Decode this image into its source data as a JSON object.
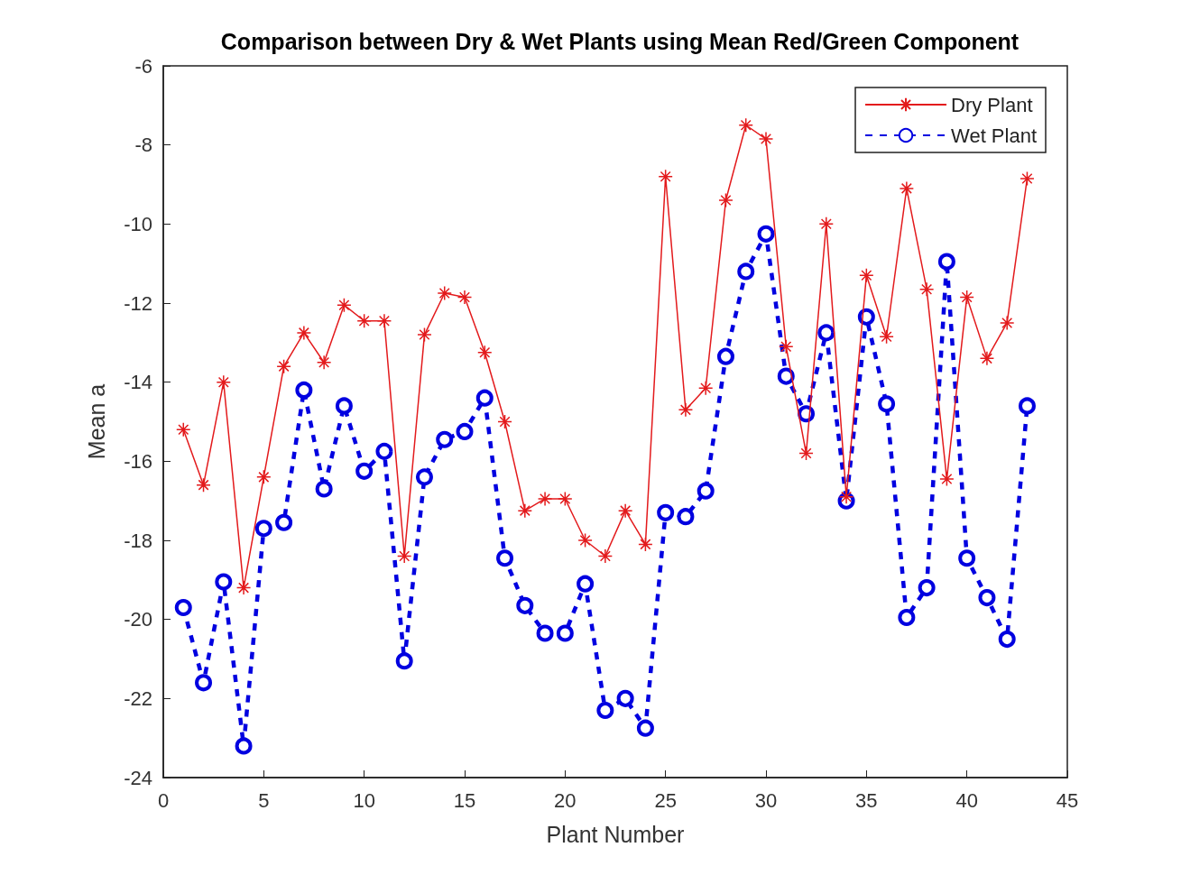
{
  "chart_data": {
    "type": "line",
    "title": "Comparison between Dry & Wet Plants using Mean Red/Green Component",
    "xlabel": "Plant Number",
    "ylabel": "Mean a",
    "x": [
      1,
      2,
      3,
      4,
      5,
      6,
      7,
      8,
      9,
      10,
      11,
      12,
      13,
      14,
      15,
      16,
      17,
      18,
      19,
      20,
      21,
      22,
      23,
      24,
      25,
      26,
      27,
      28,
      29,
      30,
      31,
      32,
      33,
      34,
      35,
      36,
      37,
      38,
      39,
      40,
      41,
      42,
      43
    ],
    "series": [
      {
        "name": "Dry Plant",
        "color": "#e31a1c",
        "marker": "cross",
        "line_style": "solid",
        "values": [
          -15.2,
          -16.6,
          -14.0,
          -19.2,
          -16.4,
          -13.6,
          -12.75,
          -13.5,
          -12.05,
          -12.45,
          -12.45,
          -18.4,
          -12.8,
          -11.75,
          -11.85,
          -13.25,
          -15.0,
          -17.25,
          -16.95,
          -16.95,
          -18.0,
          -18.4,
          -17.25,
          -18.1,
          -8.8,
          -14.7,
          -14.15,
          -9.4,
          -7.5,
          -7.85,
          -13.1,
          -15.8,
          -10.0,
          -16.9,
          -11.3,
          -12.85,
          -9.1,
          -11.65,
          -16.45,
          -11.85,
          -13.4,
          -12.5,
          -8.85
        ]
      },
      {
        "name": "Wet Plant",
        "color": "#0000e0",
        "marker": "circle",
        "line_style": "dashed",
        "values": [
          -19.7,
          -21.6,
          -19.05,
          -23.2,
          -17.7,
          -17.55,
          -14.2,
          -16.7,
          -14.6,
          -16.25,
          -15.75,
          -21.05,
          -16.4,
          -15.45,
          -15.25,
          -14.4,
          -18.45,
          -19.65,
          -20.35,
          -20.35,
          -19.1,
          -22.3,
          -22.0,
          -22.75,
          -17.3,
          -17.4,
          -16.75,
          -13.35,
          -11.2,
          -10.25,
          -13.85,
          -14.8,
          -12.75,
          -17.0,
          -12.35,
          -14.55,
          -19.95,
          -19.2,
          -10.95,
          -18.45,
          -19.45,
          -20.5,
          -14.6
        ]
      }
    ],
    "xlim": [
      0,
      45
    ],
    "xticks": [
      0,
      5,
      10,
      15,
      20,
      25,
      30,
      35,
      40,
      45
    ],
    "ylim": [
      -24,
      -6
    ],
    "yticks": [
      -24,
      -22,
      -20,
      -18,
      -16,
      -14,
      -12,
      -10,
      -8,
      -6
    ],
    "grid": false,
    "legend": "top right"
  }
}
